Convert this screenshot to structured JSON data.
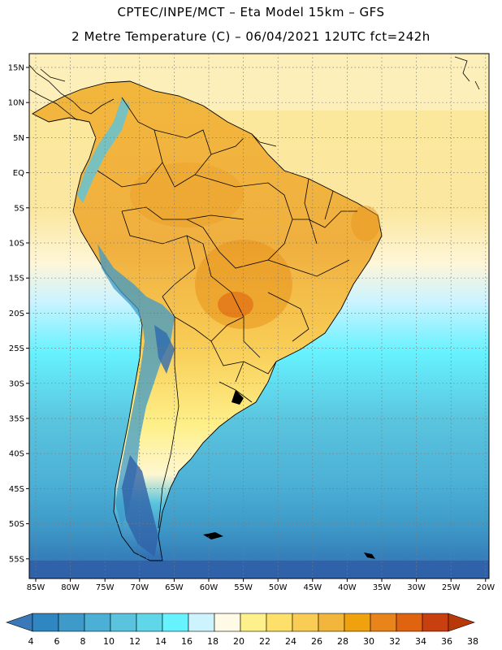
{
  "header": {
    "line1": "CPTEC/INPE/MCT –  Eta Model 15km – GFS",
    "line2": "2 Metre Temperature (C) – 06/04/2021 12UTC fct=242h"
  },
  "map": {
    "lon_labels": [
      "85W",
      "80W",
      "75W",
      "70W",
      "65W",
      "60W",
      "55W",
      "50W",
      "45W",
      "40W",
      "35W",
      "30W",
      "25W",
      "20W"
    ],
    "lat_labels": [
      "15N",
      "10N",
      "5N",
      "EQ",
      "5S",
      "10S",
      "15S",
      "20S",
      "25S",
      "30S",
      "35S",
      "40S",
      "45S",
      "50S",
      "55S"
    ]
  },
  "colorbar": {
    "labels": [
      "4",
      "6",
      "8",
      "10",
      "12",
      "14",
      "16",
      "18",
      "20",
      "22",
      "24",
      "26",
      "28",
      "30",
      "32",
      "34",
      "36",
      "38"
    ],
    "colors": [
      "#3a78b8",
      "#2f86c0",
      "#3e9ac8",
      "#4cb0d6",
      "#5ac4de",
      "#60d7e8",
      "#66f2ff",
      "#cdf3ff",
      "#fefae6",
      "#fef08a",
      "#fde06a",
      "#f8cc55",
      "#f2b63c",
      "#f0a20e",
      "#e8841a",
      "#e06410",
      "#c84010",
      "#b83808"
    ]
  }
}
